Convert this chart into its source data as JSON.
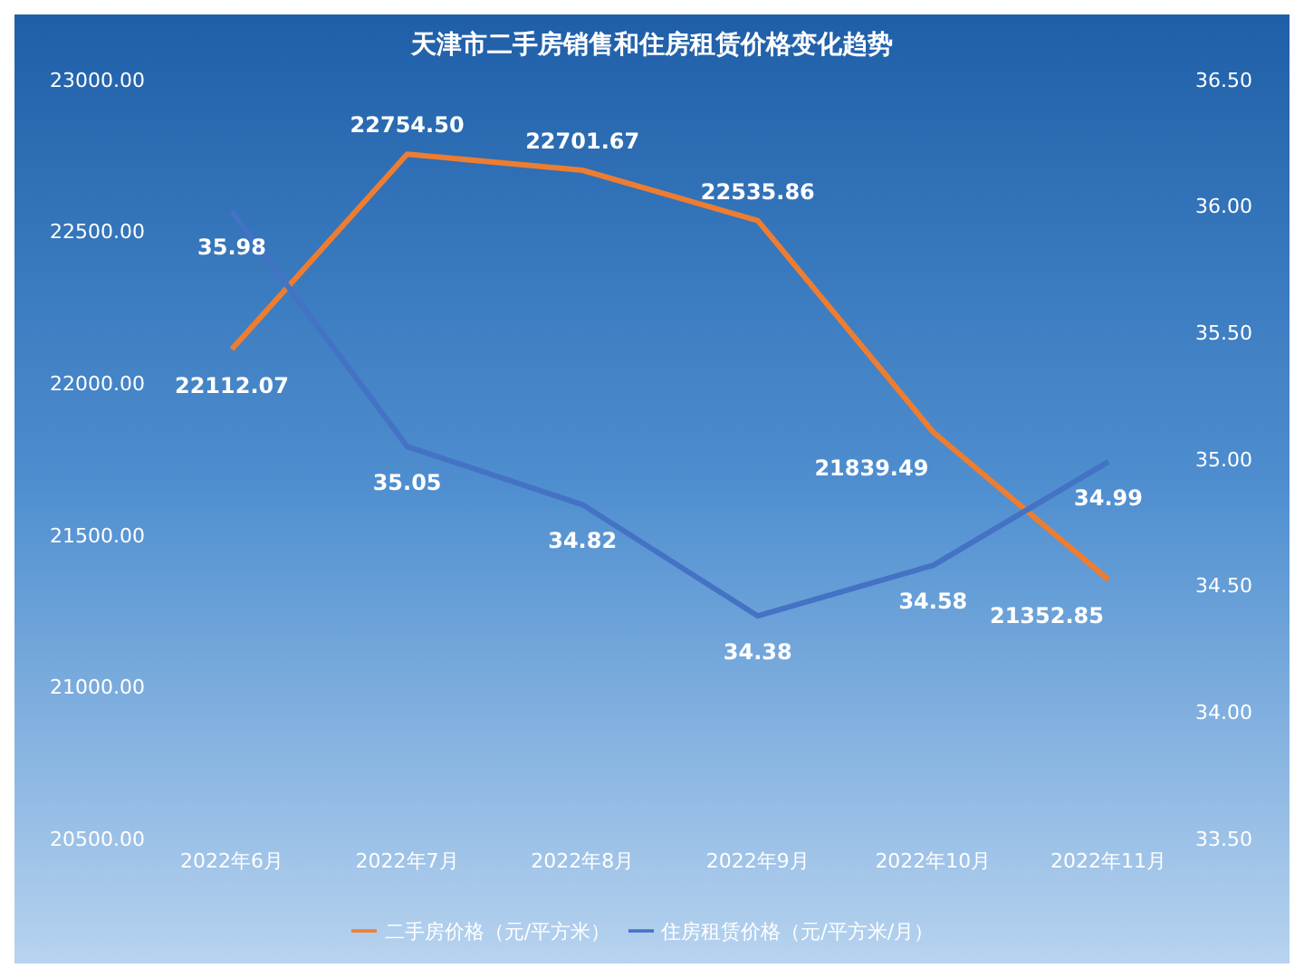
{
  "chart_data": {
    "type": "line",
    "title": "天津市二手房销售和住房租赁价格变化趋势",
    "categories": [
      "2022年6月",
      "2022年7月",
      "2022年8月",
      "2022年9月",
      "2022年10月",
      "2022年11月"
    ],
    "series": [
      {
        "name": "二手房价格（元/平方米）",
        "color": "#ed7d31",
        "values": [
          22112.07,
          22754.5,
          22701.67,
          22535.86,
          21839.49,
          21352.85
        ],
        "value_labels": [
          "22112.07",
          "22754.50",
          "22701.67",
          "22535.86",
          "21839.49",
          "21352.85"
        ]
      },
      {
        "name": "住房租赁价格（元/平方米/月）",
        "color": "#4472c4",
        "axis": "y2",
        "values": [
          35.98,
          35.05,
          34.82,
          34.38,
          34.58,
          34.99
        ],
        "value_labels": [
          "35.98",
          "35.05",
          "34.82",
          "34.38",
          "34.58",
          "34.99"
        ]
      }
    ],
    "ylim": [
      20500,
      23000
    ],
    "yticks": [
      {
        "value": 20500,
        "label": "20500.00"
      },
      {
        "value": 21000,
        "label": "21000.00"
      },
      {
        "value": 21500,
        "label": "21500.00"
      },
      {
        "value": 22000,
        "label": "22000.00"
      },
      {
        "value": 22500,
        "label": "22500.00"
      },
      {
        "value": 23000,
        "label": "23000.00"
      }
    ],
    "y2lim": [
      33.5,
      36.5
    ],
    "y2ticks": [
      {
        "value": 33.5,
        "label": "33.50"
      },
      {
        "value": 34,
        "label": "34.00"
      },
      {
        "value": 34.5,
        "label": "34.50"
      },
      {
        "value": 35,
        "label": "35.00"
      },
      {
        "value": 35.5,
        "label": "35.50"
      },
      {
        "value": 36,
        "label": "36.00"
      },
      {
        "value": 36.5,
        "label": "36.50"
      }
    ],
    "legend": "bottom",
    "marker": "none",
    "line_style": "solid",
    "grid": false
  }
}
